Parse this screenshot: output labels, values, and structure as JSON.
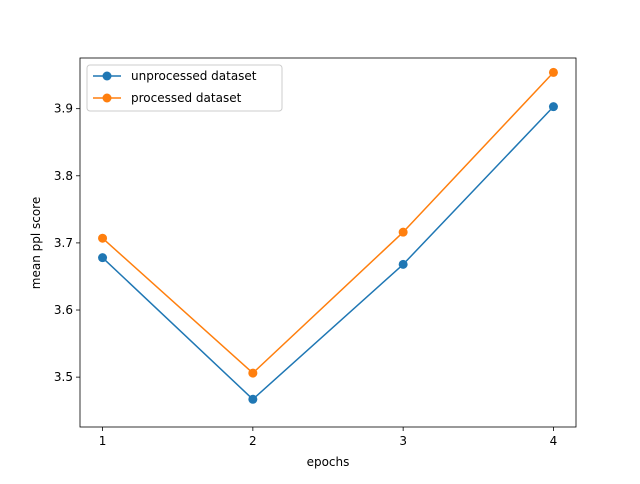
{
  "chart_data": {
    "type": "line",
    "x": [
      1,
      2,
      3,
      4
    ],
    "series": [
      {
        "name": "unprocessed dataset",
        "values": [
          3.678,
          3.467,
          3.668,
          3.903
        ],
        "color": "#1f77b4",
        "marker": "circle"
      },
      {
        "name": "processed dataset",
        "values": [
          3.707,
          3.506,
          3.716,
          3.954
        ],
        "color": "#ff7f0e",
        "marker": "circle"
      }
    ],
    "xlabel": "epochs",
    "ylabel": "mean ppl score",
    "xlim": [
      0.85,
      4.15
    ],
    "ylim": [
      3.4257,
      3.9755
    ],
    "xticks": [
      "1",
      "2",
      "3",
      "4"
    ],
    "yticks": [
      "3.5",
      "3.6",
      "3.7",
      "3.8",
      "3.9"
    ],
    "ytick_values": [
      3.5,
      3.6,
      3.7,
      3.8,
      3.9
    ],
    "grid": false,
    "legend_position": "upper left"
  }
}
